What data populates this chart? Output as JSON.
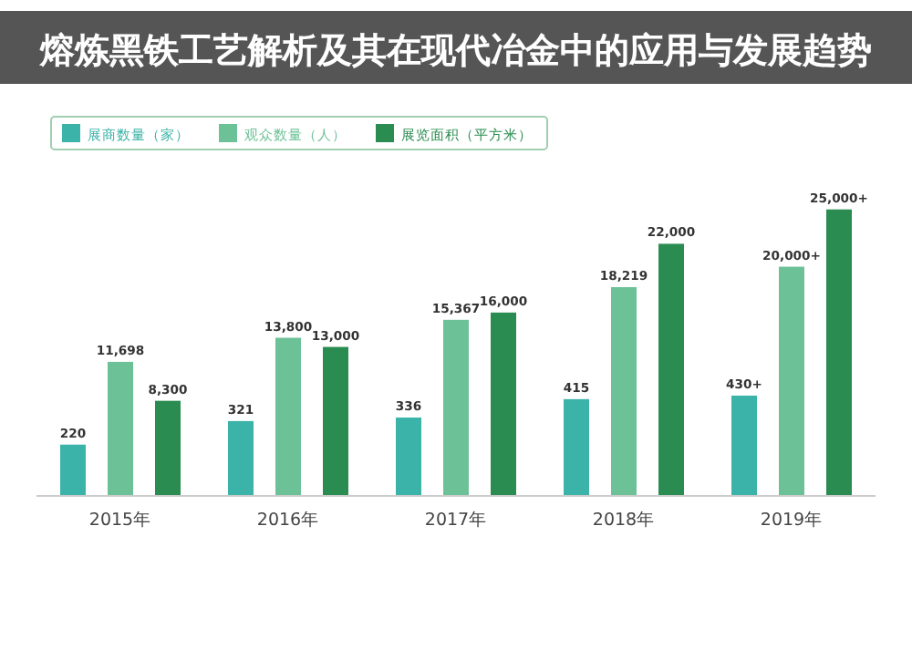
{
  "chart_data": {
    "type": "bar",
    "title": "熔炼黑铁工艺解析及其在现代冶金中的应用与发展趋势",
    "categories": [
      "2015年",
      "2016年",
      "2017年",
      "2018年",
      "2019年"
    ],
    "series": [
      {
        "name": "展商数量（家）",
        "color": "#3cb3a8",
        "axis": "y2",
        "values": [
          220,
          321,
          336,
          415,
          430
        ],
        "value_labels": [
          "220",
          "321",
          "336",
          "415",
          "430+"
        ]
      },
      {
        "name": "观众数量（人）",
        "color": "#6dc196",
        "values": [
          11698,
          13800,
          15367,
          18219,
          20000
        ],
        "value_labels": [
          "11,698",
          "13,800",
          "15,367",
          "18,219",
          "20,000+"
        ]
      },
      {
        "name": "展览面积（平方米）",
        "color": "#2a8c50",
        "values": [
          8300,
          13000,
          16000,
          22000,
          25000
        ],
        "value_labels": [
          "8,300",
          "13,000",
          "16,000",
          "22,000",
          "25,000+"
        ]
      }
    ],
    "legend": "top left",
    "tick_labels": "x"
  }
}
